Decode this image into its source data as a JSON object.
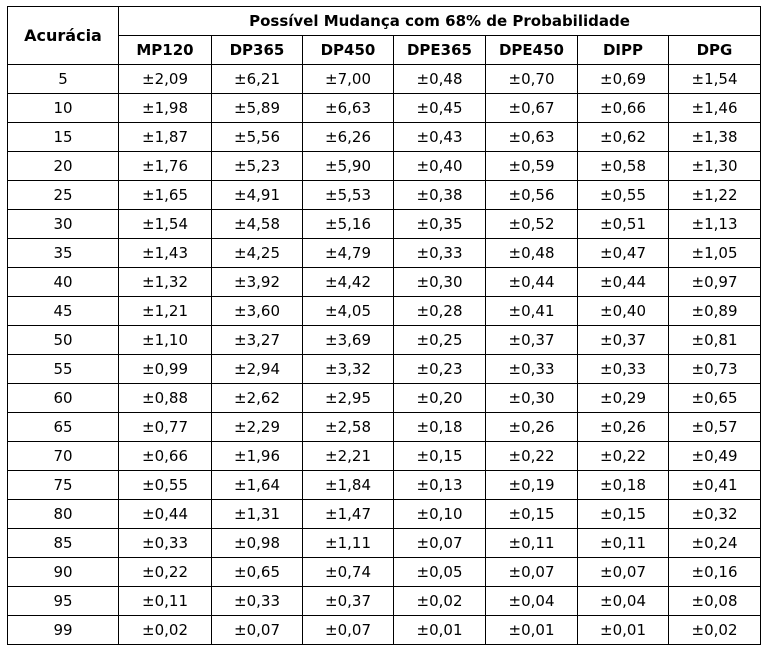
{
  "table": {
    "corner_header": "Acurácia",
    "group_header": "Possível Mudança com 68% de Probabilidade",
    "columns": [
      "MP120",
      "DP365",
      "DP450",
      "DPE365",
      "DPE450",
      "DIPP",
      "DPG"
    ],
    "rows": [
      {
        "acuracia": "5",
        "values": [
          "±2,09",
          "±6,21",
          "±7,00",
          "±0,48",
          "±0,70",
          "±0,69",
          "±1,54"
        ]
      },
      {
        "acuracia": "10",
        "values": [
          "±1,98",
          "±5,89",
          "±6,63",
          "±0,45",
          "±0,67",
          "±0,66",
          "±1,46"
        ]
      },
      {
        "acuracia": "15",
        "values": [
          "±1,87",
          "±5,56",
          "±6,26",
          "±0,43",
          "±0,63",
          "±0,62",
          "±1,38"
        ]
      },
      {
        "acuracia": "20",
        "values": [
          "±1,76",
          "±5,23",
          "±5,90",
          "±0,40",
          "±0,59",
          "±0,58",
          "±1,30"
        ]
      },
      {
        "acuracia": "25",
        "values": [
          "±1,65",
          "±4,91",
          "±5,53",
          "±0,38",
          "±0,56",
          "±0,55",
          "±1,22"
        ]
      },
      {
        "acuracia": "30",
        "values": [
          "±1,54",
          "±4,58",
          "±5,16",
          "±0,35",
          "±0,52",
          "±0,51",
          "±1,13"
        ]
      },
      {
        "acuracia": "35",
        "values": [
          "±1,43",
          "±4,25",
          "±4,79",
          "±0,33",
          "±0,48",
          "±0,47",
          "±1,05"
        ]
      },
      {
        "acuracia": "40",
        "values": [
          "±1,32",
          "±3,92",
          "±4,42",
          "±0,30",
          "±0,44",
          "±0,44",
          "±0,97"
        ]
      },
      {
        "acuracia": "45",
        "values": [
          "±1,21",
          "±3,60",
          "±4,05",
          "±0,28",
          "±0,41",
          "±0,40",
          "±0,89"
        ]
      },
      {
        "acuracia": "50",
        "values": [
          "±1,10",
          "±3,27",
          "±3,69",
          "±0,25",
          "±0,37",
          "±0,37",
          "±0,81"
        ]
      },
      {
        "acuracia": "55",
        "values": [
          "±0,99",
          "±2,94",
          "±3,32",
          "±0,23",
          "±0,33",
          "±0,33",
          "±0,73"
        ]
      },
      {
        "acuracia": "60",
        "values": [
          "±0,88",
          "±2,62",
          "±2,95",
          "±0,20",
          "±0,30",
          "±0,29",
          "±0,65"
        ]
      },
      {
        "acuracia": "65",
        "values": [
          "±0,77",
          "±2,29",
          "±2,58",
          "±0,18",
          "±0,26",
          "±0,26",
          "±0,57"
        ]
      },
      {
        "acuracia": "70",
        "values": [
          "±0,66",
          "±1,96",
          "±2,21",
          "±0,15",
          "±0,22",
          "±0,22",
          "±0,49"
        ]
      },
      {
        "acuracia": "75",
        "values": [
          "±0,55",
          "±1,64",
          "±1,84",
          "±0,13",
          "±0,19",
          "±0,18",
          "±0,41"
        ]
      },
      {
        "acuracia": "80",
        "values": [
          "±0,44",
          "±1,31",
          "±1,47",
          "±0,10",
          "±0,15",
          "±0,15",
          "±0,32"
        ]
      },
      {
        "acuracia": "85",
        "values": [
          "±0,33",
          "±0,98",
          "±1,11",
          "±0,07",
          "±0,11",
          "±0,11",
          "±0,24"
        ]
      },
      {
        "acuracia": "90",
        "values": [
          "±0,22",
          "±0,65",
          "±0,74",
          "±0,05",
          "±0,07",
          "±0,07",
          "±0,16"
        ]
      },
      {
        "acuracia": "95",
        "values": [
          "±0,11",
          "±0,33",
          "±0,37",
          "±0,02",
          "±0,04",
          "±0,04",
          "±0,08"
        ]
      },
      {
        "acuracia": "99",
        "values": [
          "±0,02",
          "±0,07",
          "±0,07",
          "±0,01",
          "±0,01",
          "±0,01",
          "±0,02"
        ]
      }
    ]
  }
}
